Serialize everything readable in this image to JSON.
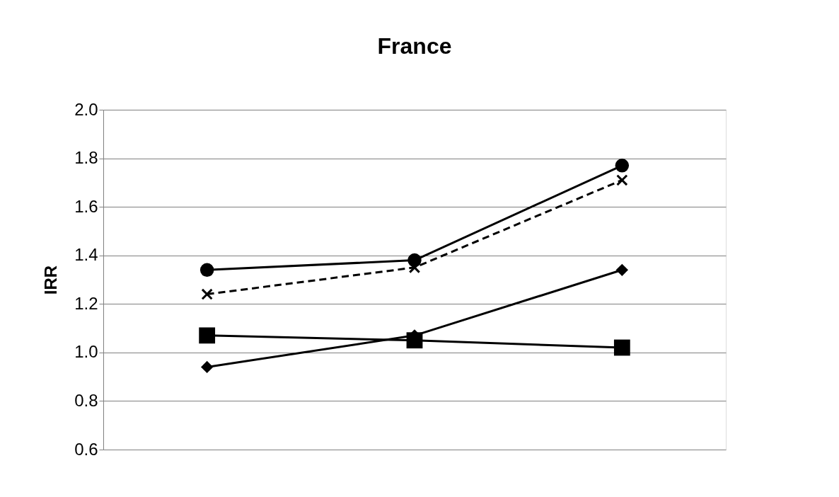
{
  "chart_data": {
    "type": "line",
    "title": "France",
    "ylabel": "IRR",
    "categories": [
      null,
      null,
      null
    ],
    "series": [
      {
        "color": "#000000",
        "marker": "circle",
        "line_style": "solid",
        "values": [
          1.34,
          1.38,
          1.77
        ]
      },
      {
        "color": "#000000",
        "marker": "cross",
        "line_style": "dashed",
        "values": [
          1.24,
          1.35,
          1.71
        ]
      },
      {
        "color": "#000000",
        "marker": "square",
        "line_style": "solid",
        "values": [
          1.07,
          1.05,
          1.02
        ]
      },
      {
        "color": "#000000",
        "marker": "diamond",
        "line_style": "solid",
        "values": [
          0.94,
          1.07,
          1.34
        ]
      }
    ],
    "ylim": [
      0.6,
      2.0
    ],
    "yticks": [
      0.6,
      0.8,
      {
        "value": 1,
        "label": "1.0"
      },
      1.2,
      1.4,
      1.6,
      1.8,
      {
        "value": 2,
        "label": "2.0"
      }
    ],
    "grid": "y",
    "tick_labels": "y"
  }
}
